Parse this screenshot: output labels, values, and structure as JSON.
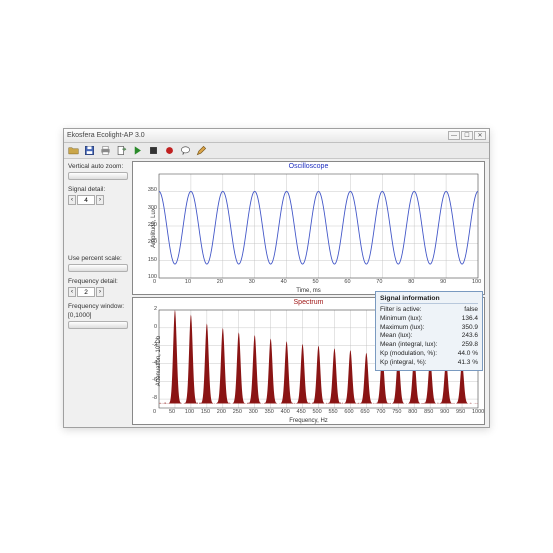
{
  "window": {
    "title": "Ekosfera Ecolight-AP 3.0",
    "buttons": {
      "min": "—",
      "max": "☐",
      "close": "✕"
    }
  },
  "toolbar_icons": [
    "folder",
    "save",
    "print",
    "export",
    "play",
    "stop",
    "record",
    "comment",
    "edit"
  ],
  "sidebar": {
    "vertical_auto_zoom_label": "Vertical auto zoom:",
    "signal_detail_label": "Signal detail:",
    "signal_detail_value": "4",
    "use_percent_label": "Use percent scale:",
    "freq_detail_label": "Frequency detail:",
    "freq_detail_value": "2",
    "freq_window_label": "Frequency window:",
    "freq_window_value": "[0,1000]"
  },
  "osc_chart": {
    "type": "line",
    "title": "Oscilloscope",
    "title_color": "#2030c0",
    "xlabel": "Time, ms",
    "ylabel": "Amplitude, Lux",
    "xlim": [
      0,
      100
    ],
    "ylim": [
      100,
      400
    ],
    "xticks": [
      0,
      10,
      20,
      30,
      40,
      50,
      60,
      70,
      80,
      90,
      100
    ],
    "yticks": [
      100,
      150,
      200,
      250,
      300,
      350
    ],
    "line_color": "#4458c8",
    "background_color": "#ffffff",
    "grid_color": "#bcbcbc",
    "cycles": 10,
    "dc": 245,
    "amp": 105,
    "phase_deg": 90
  },
  "spec_chart": {
    "type": "spectrum",
    "title": "Spectrum",
    "title_color": "#a01818",
    "xlabel": "Frequency, Hz",
    "ylabel": "Attenuation, 10*Db",
    "xlim": [
      0,
      1000
    ],
    "ylim": [
      -9,
      2
    ],
    "xticks": [
      0,
      50,
      100,
      150,
      200,
      250,
      300,
      350,
      400,
      450,
      500,
      550,
      600,
      650,
      700,
      750,
      800,
      850,
      900,
      950,
      1000
    ],
    "yticks": [
      -8,
      -6,
      -4,
      -2,
      0,
      2
    ],
    "fill_color": "#8a1414",
    "background_color": "#ffffff",
    "grid_color": "#bcbcbc",
    "peaks": [
      {
        "f": 50,
        "a": 2
      },
      {
        "f": 100,
        "a": 1.5
      },
      {
        "f": 150,
        "a": 0.5
      },
      {
        "f": 200,
        "a": 0
      },
      {
        "f": 250,
        "a": -0.5
      },
      {
        "f": 300,
        "a": -0.8
      },
      {
        "f": 350,
        "a": -1.2
      },
      {
        "f": 400,
        "a": -1.5
      },
      {
        "f": 450,
        "a": -1.8
      },
      {
        "f": 500,
        "a": -2.0
      },
      {
        "f": 550,
        "a": -2.3
      },
      {
        "f": 600,
        "a": -2.5
      },
      {
        "f": 650,
        "a": -2.8
      },
      {
        "f": 700,
        "a": -3.0
      },
      {
        "f": 750,
        "a": -3.2
      },
      {
        "f": 800,
        "a": -3.4
      },
      {
        "f": 850,
        "a": -3.6
      },
      {
        "f": 900,
        "a": -3.8
      },
      {
        "f": 950,
        "a": -4.0
      }
    ],
    "floor": -8.5,
    "peak_width": 14
  },
  "info": {
    "title": "Signal information",
    "rows": [
      {
        "k": "Filter is active:",
        "v": "false"
      },
      {
        "k": "Minimum (lux):",
        "v": "136.4"
      },
      {
        "k": "Maximum (lux):",
        "v": "350.9"
      },
      {
        "k": "Mean (lux):",
        "v": "243.6"
      },
      {
        "k": "Mean (integral, lux):",
        "v": "259.8"
      },
      {
        "k": "Kp (modulation, %):",
        "v": "44.0 %"
      },
      {
        "k": "Kp (integral, %):",
        "v": "41.3 %"
      }
    ]
  }
}
